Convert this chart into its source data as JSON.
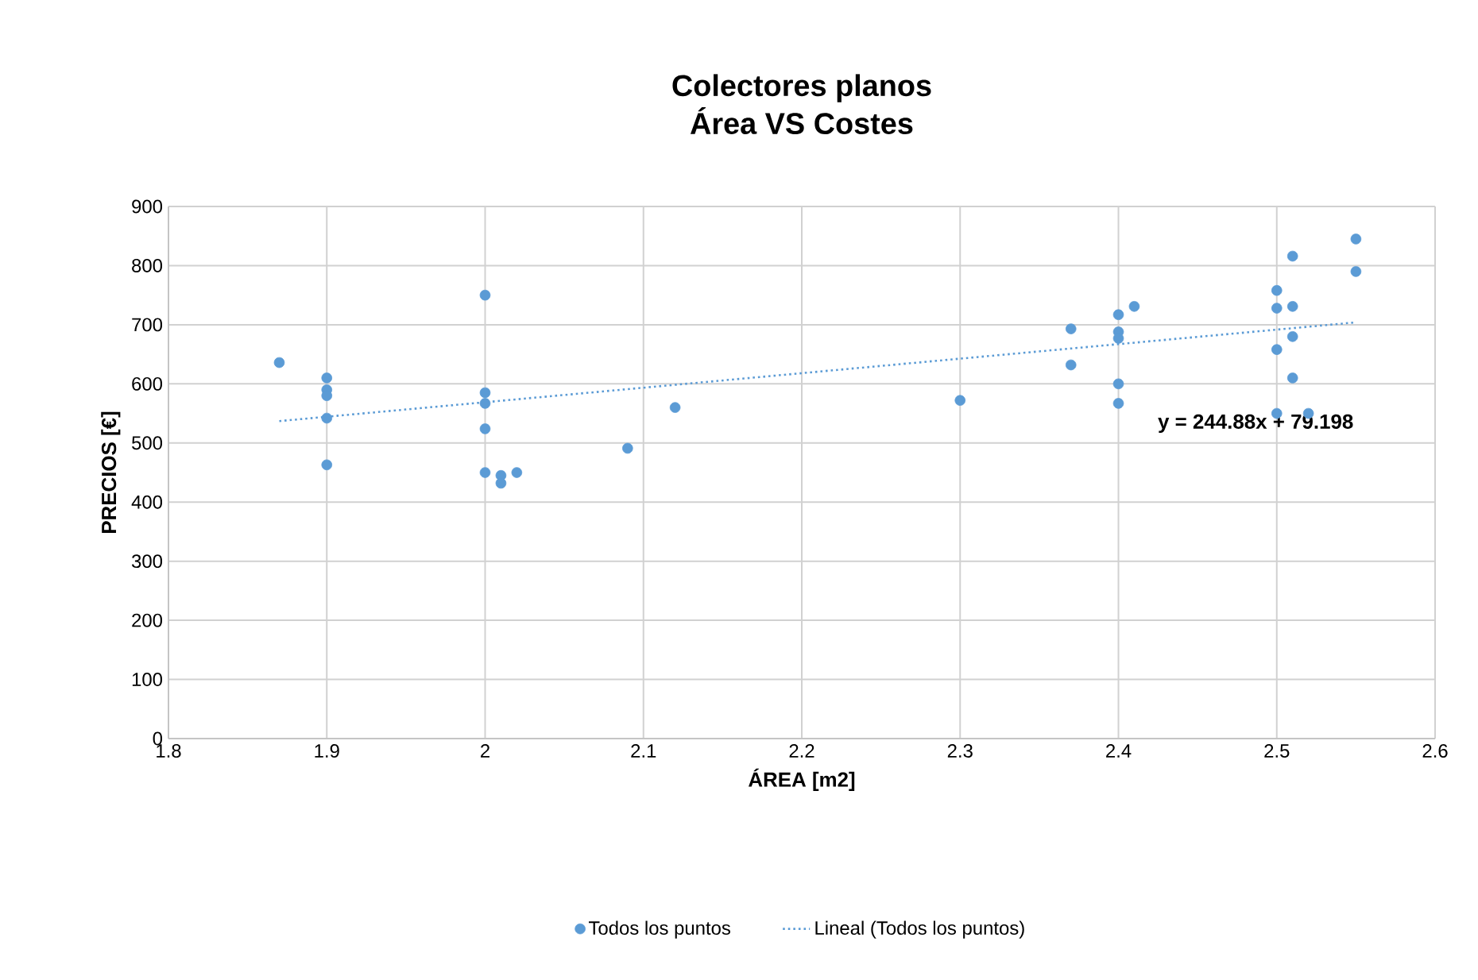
{
  "chart_data": {
    "type": "scatter",
    "title": "Colectores planos",
    "subtitle": "Área VS Costes",
    "xlabel": "ÁREA [m2]",
    "ylabel": "PRECIOS [€]",
    "xlim": [
      1.8,
      2.6
    ],
    "xticks": [
      1.8,
      1.9,
      2,
      2.1,
      2.2,
      2.3,
      2.4,
      2.5,
      2.6
    ],
    "ylim": [
      0,
      900
    ],
    "yticks": [
      0,
      100,
      200,
      300,
      400,
      500,
      600,
      700,
      800,
      900
    ],
    "grid": true,
    "legend": "bottom",
    "annotations": [
      "y = 244.88x + 79.198"
    ],
    "series": [
      {
        "name": "Todos los puntos",
        "color": "#5b9bd5",
        "marker": "circle",
        "x": [
          1.87,
          1.9,
          1.9,
          1.9,
          1.9,
          1.9,
          2,
          2,
          2,
          2,
          2,
          2.01,
          2.01,
          2.02,
          2.09,
          2.12,
          2.3,
          2.37,
          2.37,
          2.4,
          2.4,
          2.4,
          2.4,
          2.4,
          2.41,
          2.5,
          2.5,
          2.5,
          2.5,
          2.51,
          2.51,
          2.51,
          2.51,
          2.52,
          2.55,
          2.55
        ],
        "values": [
          636,
          610,
          590,
          580,
          542,
          463,
          750,
          585,
          567,
          524,
          450,
          445,
          432,
          450,
          491,
          560,
          572,
          693,
          632,
          717,
          688,
          677,
          600,
          567,
          731,
          758,
          728,
          658,
          550,
          816,
          731,
          680,
          610,
          550,
          845,
          790
        ]
      },
      {
        "name": "Lineal (Todos los puntos)",
        "color": "#5b9bd5",
        "type": "line",
        "line_style": "dotted",
        "marker": "none",
        "x": [
          1.87,
          2.55
        ],
        "values": [
          537,
          704
        ]
      }
    ]
  }
}
